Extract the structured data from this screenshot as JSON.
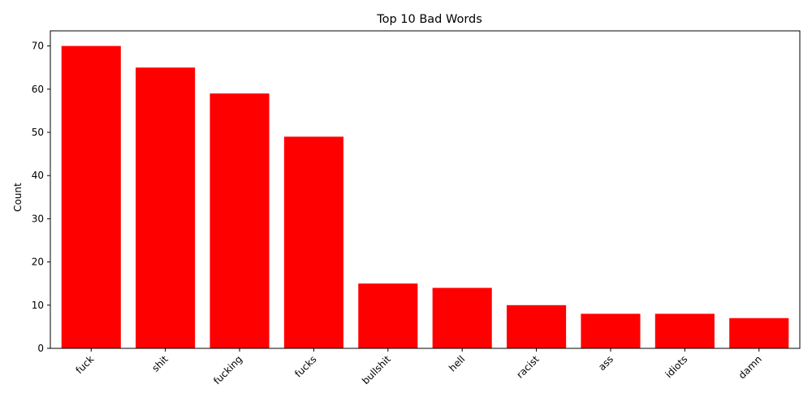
{
  "chart_data": {
    "type": "bar",
    "title": "Top 10 Bad Words",
    "xlabel": "",
    "ylabel": "Count",
    "categories": [
      "fuck",
      "shit",
      "fucking",
      "fucks",
      "bullshit",
      "hell",
      "racist",
      "ass",
      "idiots",
      "damn"
    ],
    "values": [
      70,
      65,
      59,
      49,
      15,
      14,
      10,
      8,
      8,
      7
    ],
    "ylim": [
      0,
      73.5
    ],
    "yticks": [
      0,
      10,
      20,
      30,
      40,
      50,
      60,
      70
    ],
    "bar_color": "#ff0000",
    "grid": false,
    "legend": "none",
    "xtick_rotation": 45
  }
}
